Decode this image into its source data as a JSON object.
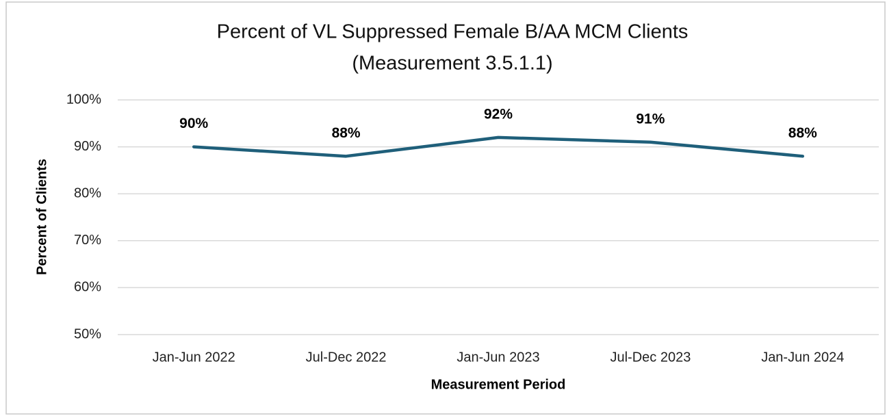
{
  "chart_data": {
    "type": "line",
    "title": "Percent of VL Suppressed Female B/AA MCM Clients",
    "subtitle": "(Measurement 3.5.1.1)",
    "x_label": "Measurement Period",
    "y_label": "Percent of Clients",
    "categories": [
      "Jan-Jun 2022",
      "Jul-Dec 2022",
      "Jan-Jun 2023",
      "Jul-Dec 2023",
      "Jan-Jun 2024"
    ],
    "values": [
      90,
      88,
      92,
      91,
      88
    ],
    "value_labels": [
      "90%",
      "88%",
      "92%",
      "91%",
      "88%"
    ],
    "color": "#1f5f7a",
    "ylim": [
      50,
      100
    ],
    "yticks": [
      {
        "value": 50,
        "label": "50%"
      },
      {
        "value": 60,
        "label": "60%"
      },
      {
        "value": 70,
        "label": "70%"
      },
      {
        "value": 80,
        "label": "80%"
      },
      {
        "value": 90,
        "label": "90%"
      },
      {
        "value": 100,
        "label": "100%"
      }
    ],
    "grid": true
  }
}
